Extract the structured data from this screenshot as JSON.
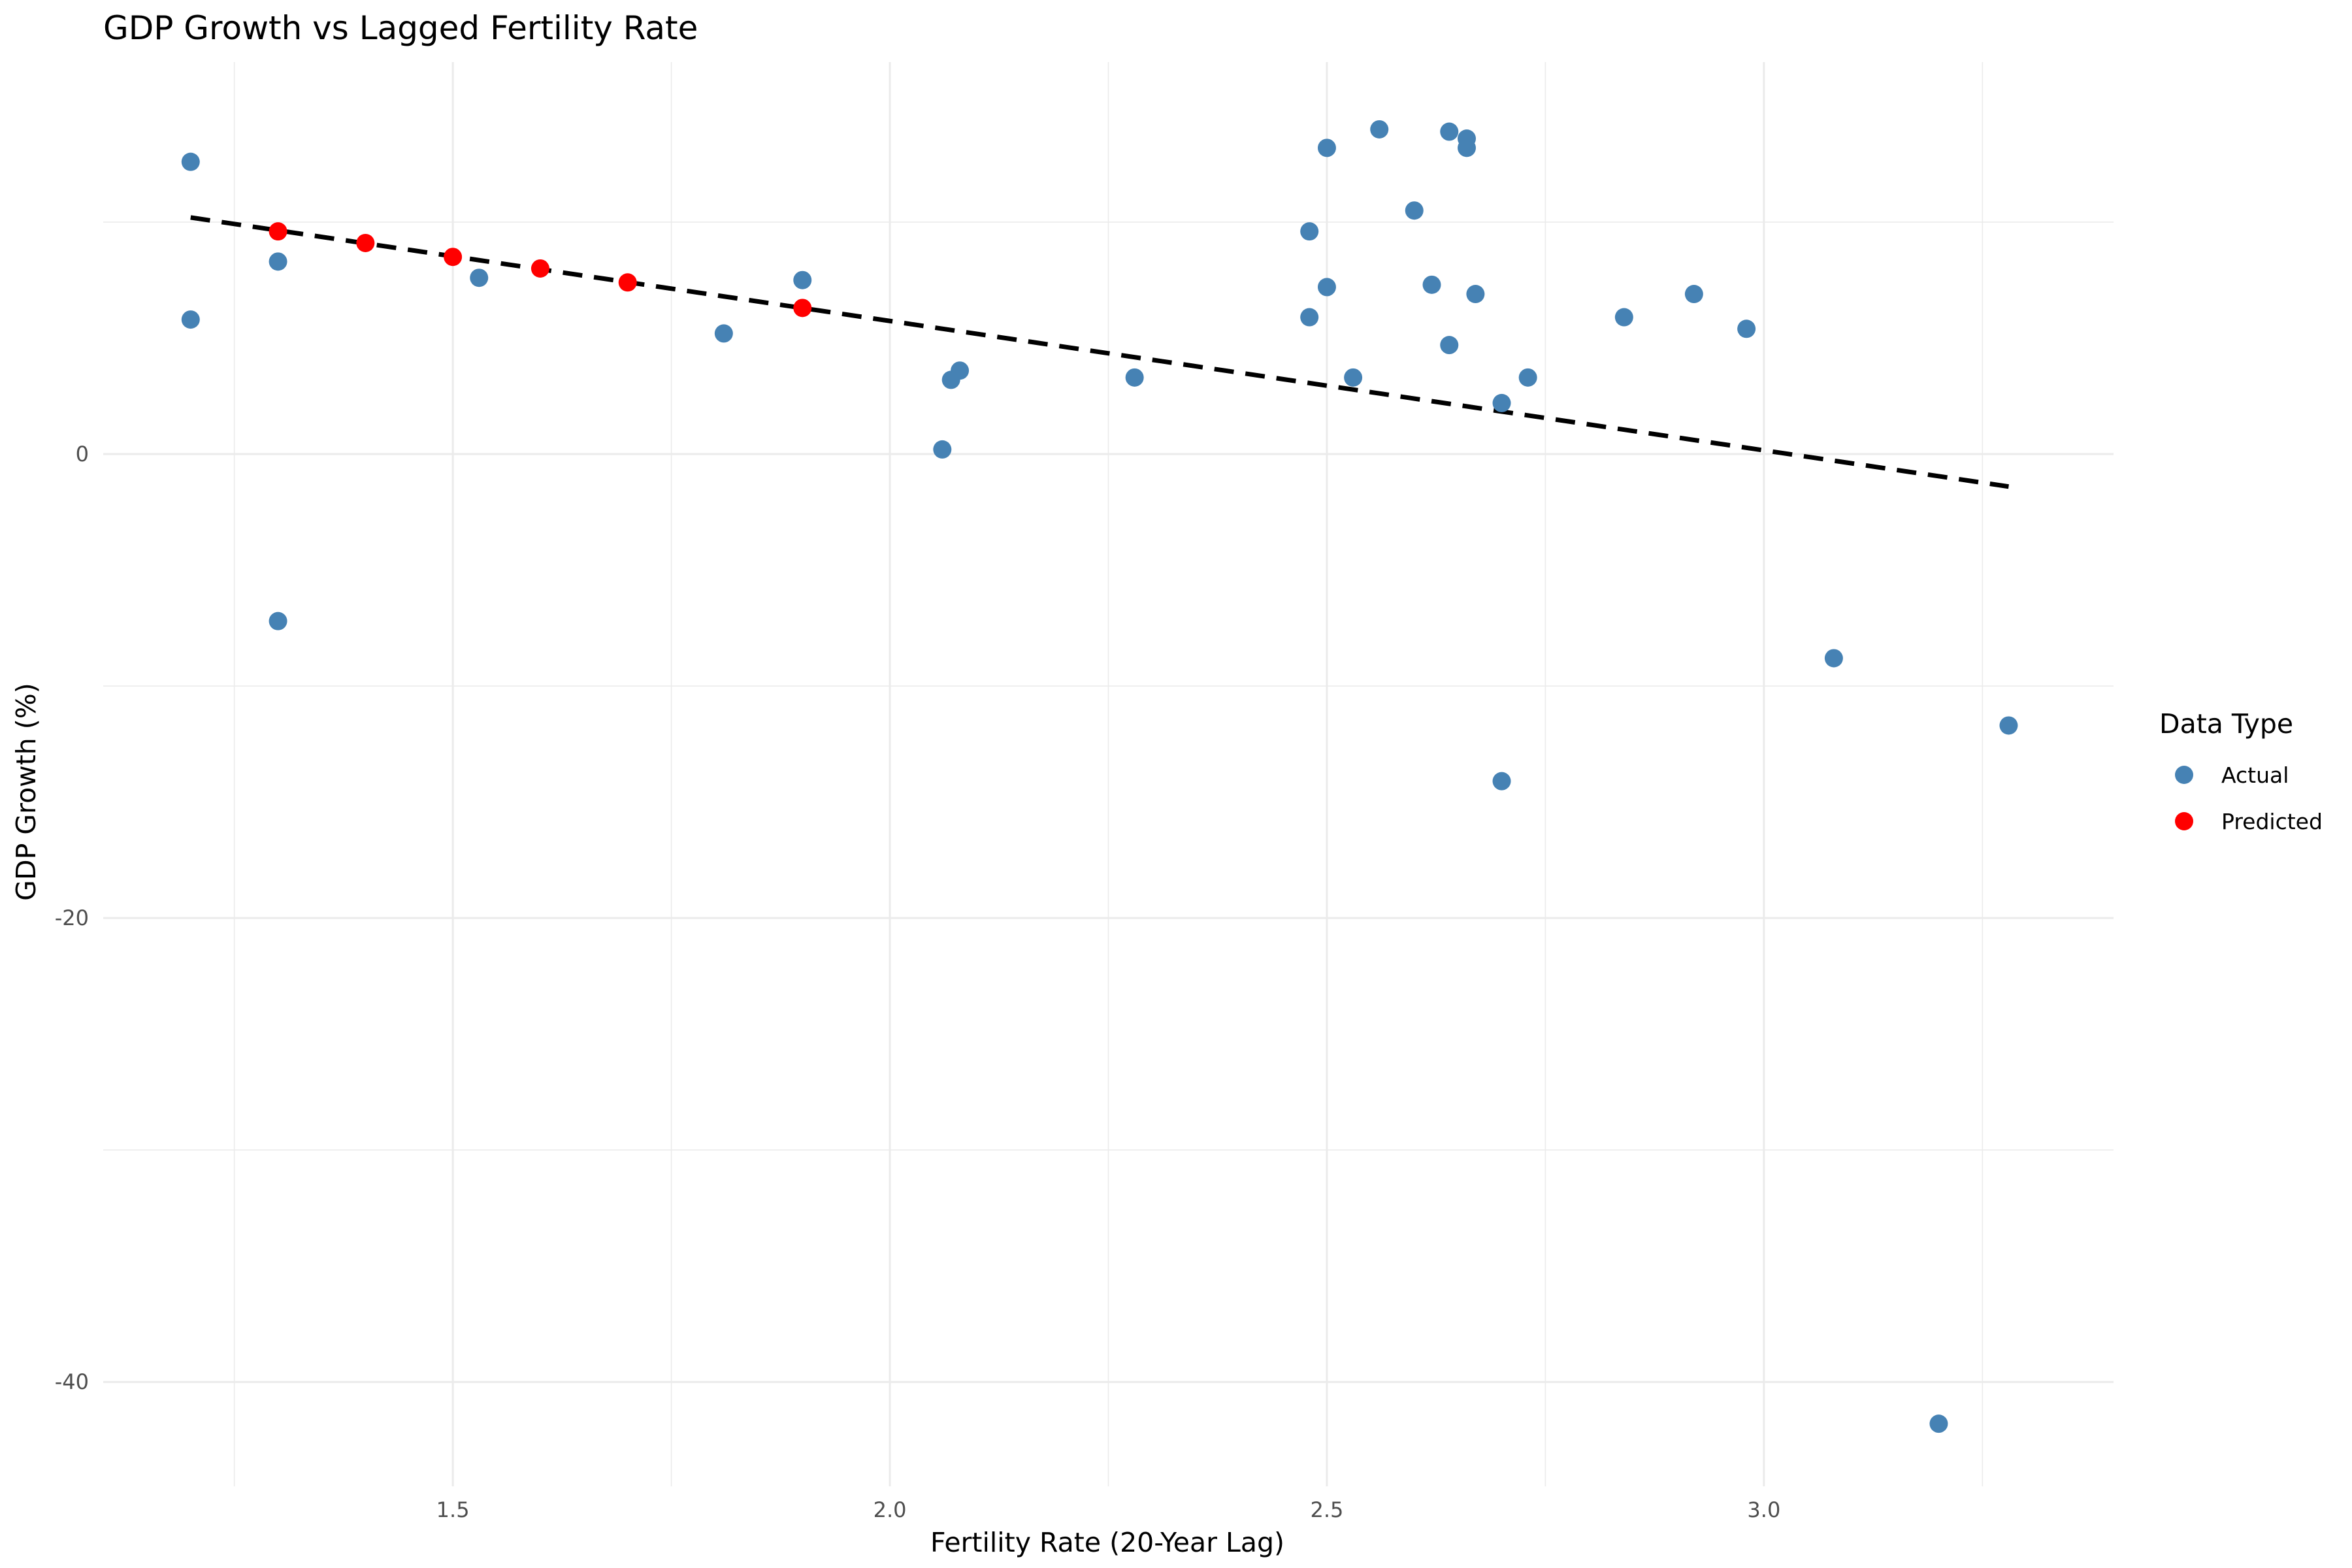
{
  "chart_data": {
    "type": "scatter",
    "title": "GDP Growth vs Lagged Fertility Rate",
    "xlabel": "Fertility Rate (20-Year Lag)",
    "ylabel": "GDP Growth (%)",
    "xlim": [
      1.1,
      3.4
    ],
    "ylim": [
      -44.5,
      16.9
    ],
    "x_ticks": [
      1.5,
      2.0,
      2.5,
      3.0
    ],
    "x_tick_labels": [
      "1.5",
      "2.0",
      "2.5",
      "3.0"
    ],
    "y_ticks": [
      -40,
      -20,
      0
    ],
    "y_tick_labels": [
      "-40",
      "-20",
      "0"
    ],
    "grid": true,
    "legend": {
      "title": "Data Type",
      "position": "right",
      "entries": [
        {
          "label": "Actual",
          "color": "#4682B4"
        },
        {
          "label": "Predicted",
          "color": "#FF0000"
        }
      ]
    },
    "series": [
      {
        "name": "Actual",
        "color": "#4682B4",
        "points": [
          {
            "x": 1.2,
            "y": 12.6
          },
          {
            "x": 1.2,
            "y": 5.8
          },
          {
            "x": 1.3,
            "y": 8.3
          },
          {
            "x": 1.3,
            "y": -7.2
          },
          {
            "x": 1.53,
            "y": 7.6
          },
          {
            "x": 1.81,
            "y": 5.2
          },
          {
            "x": 1.9,
            "y": 7.5
          },
          {
            "x": 2.06,
            "y": 0.2
          },
          {
            "x": 2.07,
            "y": 3.2
          },
          {
            "x": 2.08,
            "y": 3.6
          },
          {
            "x": 2.28,
            "y": 3.3
          },
          {
            "x": 2.48,
            "y": 9.6
          },
          {
            "x": 2.48,
            "y": 5.9
          },
          {
            "x": 2.5,
            "y": 7.2
          },
          {
            "x": 2.5,
            "y": 13.2
          },
          {
            "x": 2.53,
            "y": 3.3
          },
          {
            "x": 2.56,
            "y": 14.0
          },
          {
            "x": 2.6,
            "y": 10.5
          },
          {
            "x": 2.62,
            "y": 7.3
          },
          {
            "x": 2.64,
            "y": 13.9
          },
          {
            "x": 2.64,
            "y": 4.7
          },
          {
            "x": 2.66,
            "y": 13.6
          },
          {
            "x": 2.66,
            "y": 13.2
          },
          {
            "x": 2.67,
            "y": 6.9
          },
          {
            "x": 2.7,
            "y": 2.2
          },
          {
            "x": 2.7,
            "y": -14.1
          },
          {
            "x": 2.73,
            "y": 3.3
          },
          {
            "x": 2.84,
            "y": 5.9
          },
          {
            "x": 2.92,
            "y": 6.9
          },
          {
            "x": 2.98,
            "y": 5.4
          },
          {
            "x": 3.08,
            "y": -8.8
          },
          {
            "x": 3.2,
            "y": -41.8
          },
          {
            "x": 3.28,
            "y": -11.7
          }
        ]
      },
      {
        "name": "Predicted",
        "color": "#FF0000",
        "points": [
          {
            "x": 1.3,
            "y": 9.6
          },
          {
            "x": 1.4,
            "y": 9.1
          },
          {
            "x": 1.5,
            "y": 8.5
          },
          {
            "x": 1.6,
            "y": 8.0
          },
          {
            "x": 1.7,
            "y": 7.4
          },
          {
            "x": 1.9,
            "y": 6.3
          }
        ]
      }
    ],
    "trendline": {
      "style": "dashed",
      "color": "#000000",
      "x": [
        1.2,
        3.28
      ],
      "y": [
        10.2,
        -1.4
      ]
    }
  }
}
